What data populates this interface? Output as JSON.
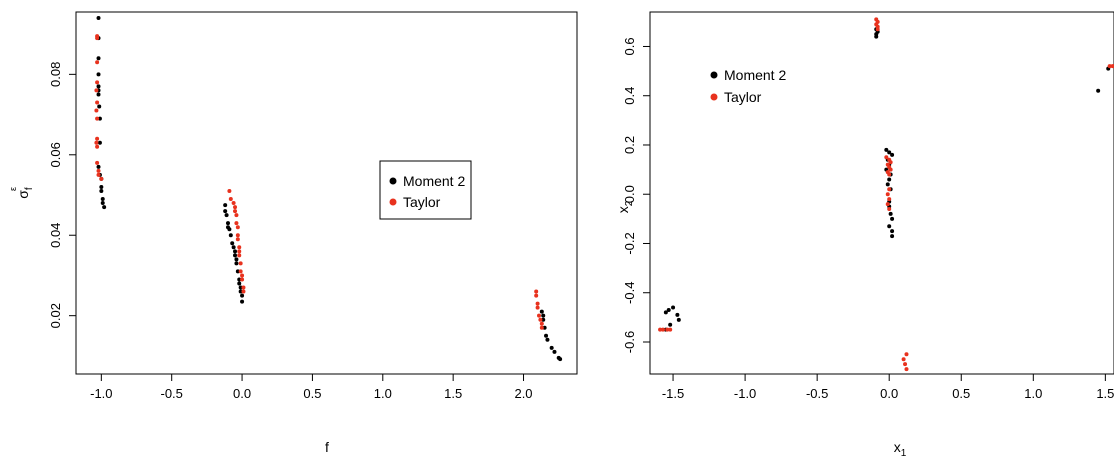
{
  "colors": {
    "moment2": "#000000",
    "taylor": "#e8321e"
  },
  "chart_data": [
    {
      "type": "scatter",
      "xlabel": "f",
      "ylabel_main": "σ",
      "ylabel_sub": "f",
      "ylabel_sup": "ε",
      "xlim": [
        -1.18,
        2.38
      ],
      "ylim": [
        0.0055,
        0.0955
      ],
      "xticks": [
        -1.0,
        -0.5,
        0.0,
        0.5,
        1.0,
        1.5,
        2.0
      ],
      "xtick_labels": [
        "-1.0",
        "-0.5",
        "0.0",
        "0.5",
        "1.0",
        "1.5",
        "2.0"
      ],
      "yticks": [
        0.02,
        0.04,
        0.06,
        0.08
      ],
      "ytick_labels": [
        "0.02",
        "0.04",
        "0.06",
        "0.08"
      ],
      "legend_position": "center-right",
      "series": [
        {
          "name": "Moment 2",
          "color": "#000000",
          "points": [
            [
              -1.02,
              0.094
            ],
            [
              -1.02,
              0.089
            ],
            [
              -1.02,
              0.084
            ],
            [
              -1.02,
              0.08
            ],
            [
              -1.02,
              0.077
            ],
            [
              -1.02,
              0.076
            ],
            [
              -1.02,
              0.075
            ],
            [
              -1.015,
              0.072
            ],
            [
              -1.01,
              0.069
            ],
            [
              -1.01,
              0.063
            ],
            [
              -1.02,
              0.057
            ],
            [
              -1.01,
              0.055
            ],
            [
              -1.0,
              0.054
            ],
            [
              -1.0,
              0.052
            ],
            [
              -1.0,
              0.051
            ],
            [
              -0.99,
              0.049
            ],
            [
              -0.99,
              0.048
            ],
            [
              -0.98,
              0.047
            ],
            [
              -0.12,
              0.0475
            ],
            [
              -0.12,
              0.046
            ],
            [
              -0.11,
              0.045
            ],
            [
              -0.1,
              0.043
            ],
            [
              -0.1,
              0.042
            ],
            [
              -0.09,
              0.0415
            ],
            [
              -0.08,
              0.04
            ],
            [
              -0.07,
              0.038
            ],
            [
              -0.06,
              0.037
            ],
            [
              -0.05,
              0.036
            ],
            [
              -0.05,
              0.035
            ],
            [
              -0.04,
              0.034
            ],
            [
              -0.04,
              0.033
            ],
            [
              -0.03,
              0.031
            ],
            [
              -0.02,
              0.029
            ],
            [
              -0.02,
              0.028
            ],
            [
              -0.01,
              0.027
            ],
            [
              -0.01,
              0.026
            ],
            [
              0.0,
              0.025
            ],
            [
              0.0,
              0.0235
            ],
            [
              2.13,
              0.021
            ],
            [
              2.14,
              0.02
            ],
            [
              2.14,
              0.019
            ],
            [
              2.15,
              0.017
            ],
            [
              2.16,
              0.015
            ],
            [
              2.17,
              0.014
            ],
            [
              2.2,
              0.012
            ],
            [
              2.22,
              0.011
            ],
            [
              2.25,
              0.0095
            ],
            [
              2.26,
              0.0092
            ]
          ]
        },
        {
          "name": "Taylor",
          "color": "#e8321e",
          "points": [
            [
              -1.03,
              0.0895
            ],
            [
              -1.03,
              0.089
            ],
            [
              -1.03,
              0.083
            ],
            [
              -1.03,
              0.078
            ],
            [
              -1.035,
              0.076
            ],
            [
              -1.03,
              0.073
            ],
            [
              -1.035,
              0.071
            ],
            [
              -1.03,
              0.069
            ],
            [
              -1.03,
              0.064
            ],
            [
              -1.035,
              0.063
            ],
            [
              -1.03,
              0.062
            ],
            [
              -1.03,
              0.058
            ],
            [
              -1.02,
              0.056
            ],
            [
              -1.02,
              0.055
            ],
            [
              -1.0,
              0.054
            ],
            [
              -0.09,
              0.051
            ],
            [
              -0.08,
              0.049
            ],
            [
              -0.06,
              0.048
            ],
            [
              -0.05,
              0.047
            ],
            [
              -0.05,
              0.046
            ],
            [
              -0.04,
              0.045
            ],
            [
              -0.04,
              0.043
            ],
            [
              -0.03,
              0.042
            ],
            [
              -0.03,
              0.04
            ],
            [
              -0.03,
              0.039
            ],
            [
              -0.02,
              0.037
            ],
            [
              -0.02,
              0.036
            ],
            [
              -0.02,
              0.035
            ],
            [
              -0.01,
              0.033
            ],
            [
              -0.01,
              0.031
            ],
            [
              0.0,
              0.03
            ],
            [
              0.0,
              0.029
            ],
            [
              0.01,
              0.027
            ],
            [
              0.01,
              0.026
            ],
            [
              2.09,
              0.026
            ],
            [
              2.09,
              0.025
            ],
            [
              2.1,
              0.023
            ],
            [
              2.1,
              0.022
            ],
            [
              2.11,
              0.02
            ],
            [
              2.12,
              0.019
            ],
            [
              2.13,
              0.018
            ],
            [
              2.13,
              0.017
            ]
          ]
        }
      ]
    },
    {
      "type": "scatter",
      "xlabel_main": "x",
      "xlabel_sub": "1",
      "ylabel_main": "x",
      "ylabel_sub": "2",
      "xlim": [
        -1.66,
        1.56
      ],
      "ylim": [
        -0.73,
        0.74
      ],
      "xticks": [
        -1.5,
        -1.0,
        -0.5,
        0.0,
        0.5,
        1.0,
        1.5
      ],
      "xtick_labels": [
        "-1.5",
        "-1.0",
        "-0.5",
        "0.0",
        "0.5",
        "1.0",
        "1.5"
      ],
      "yticks": [
        -0.6,
        -0.4,
        -0.2,
        0.0,
        0.2,
        0.4,
        0.6
      ],
      "ytick_labels": [
        "-0.6",
        "-0.4",
        "-0.2",
        "0.0",
        "0.2",
        "0.4",
        "0.6"
      ],
      "legend_position": "top-left",
      "series": [
        {
          "name": "Moment 2",
          "color": "#000000",
          "points": [
            [
              -1.55,
              -0.48
            ],
            [
              -1.53,
              -0.47
            ],
            [
              -1.5,
              -0.46
            ],
            [
              -1.47,
              -0.49
            ],
            [
              -1.46,
              -0.51
            ],
            [
              -1.52,
              -0.53
            ],
            [
              -1.55,
              -0.55
            ],
            [
              -0.09,
              0.64
            ],
            [
              -0.09,
              0.65
            ],
            [
              -0.08,
              0.66
            ],
            [
              -0.09,
              0.67
            ],
            [
              -0.02,
              0.18
            ],
            [
              0.0,
              0.17
            ],
            [
              0.02,
              0.16
            ],
            [
              -0.01,
              0.14
            ],
            [
              0.0,
              0.12
            ],
            [
              -0.02,
              0.1
            ],
            [
              0.01,
              0.08
            ],
            [
              0.0,
              0.06
            ],
            [
              -0.01,
              0.04
            ],
            [
              0.01,
              0.02
            ],
            [
              0.0,
              -0.03
            ],
            [
              0.0,
              -0.05
            ],
            [
              0.01,
              -0.08
            ],
            [
              0.02,
              -0.1
            ],
            [
              0.0,
              -0.13
            ],
            [
              0.02,
              -0.15
            ],
            [
              0.02,
              -0.17
            ],
            [
              1.45,
              0.42
            ],
            [
              1.52,
              0.51
            ]
          ]
        },
        {
          "name": "Taylor",
          "color": "#e8321e",
          "points": [
            [
              -1.59,
              -0.55
            ],
            [
              -1.57,
              -0.55
            ],
            [
              -1.54,
              -0.55
            ],
            [
              -1.52,
              -0.55
            ],
            [
              -0.09,
              0.71
            ],
            [
              -0.08,
              0.7
            ],
            [
              -0.09,
              0.69
            ],
            [
              -0.08,
              0.68
            ],
            [
              -0.08,
              0.67
            ],
            [
              -0.02,
              0.15
            ],
            [
              0.0,
              0.14
            ],
            [
              0.01,
              0.13
            ],
            [
              -0.01,
              0.12
            ],
            [
              0.0,
              0.11
            ],
            [
              0.01,
              0.1
            ],
            [
              -0.01,
              0.09
            ],
            [
              0.0,
              0.08
            ],
            [
              0.0,
              0.02
            ],
            [
              -0.01,
              0.0
            ],
            [
              0.0,
              -0.02
            ],
            [
              -0.01,
              -0.04
            ],
            [
              0.0,
              -0.06
            ],
            [
              0.12,
              -0.65
            ],
            [
              0.1,
              -0.67
            ],
            [
              0.11,
              -0.69
            ],
            [
              0.12,
              -0.71
            ],
            [
              1.53,
              0.52
            ],
            [
              1.55,
              0.52
            ],
            [
              1.56,
              0.52
            ]
          ]
        }
      ]
    }
  ]
}
